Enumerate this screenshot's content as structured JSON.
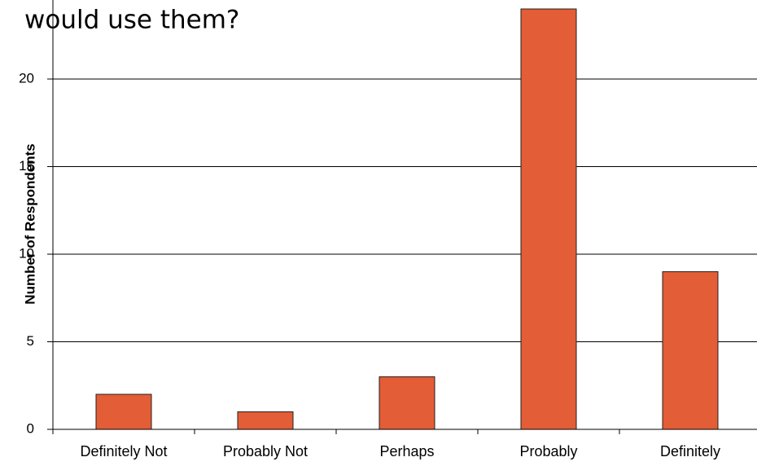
{
  "chart_data": {
    "type": "bar",
    "title": "would use them?",
    "y_label": "Number of Respondents",
    "categories": [
      "Definitely Not",
      "Probably Not",
      "Perhaps",
      "Probably",
      "Definitely"
    ],
    "values": [
      2,
      1,
      3,
      24,
      9
    ],
    "color": "#e35d36",
    "ylim": [
      0,
      25
    ],
    "yticks": [
      0,
      5,
      10,
      15,
      20
    ],
    "grid": true
  }
}
